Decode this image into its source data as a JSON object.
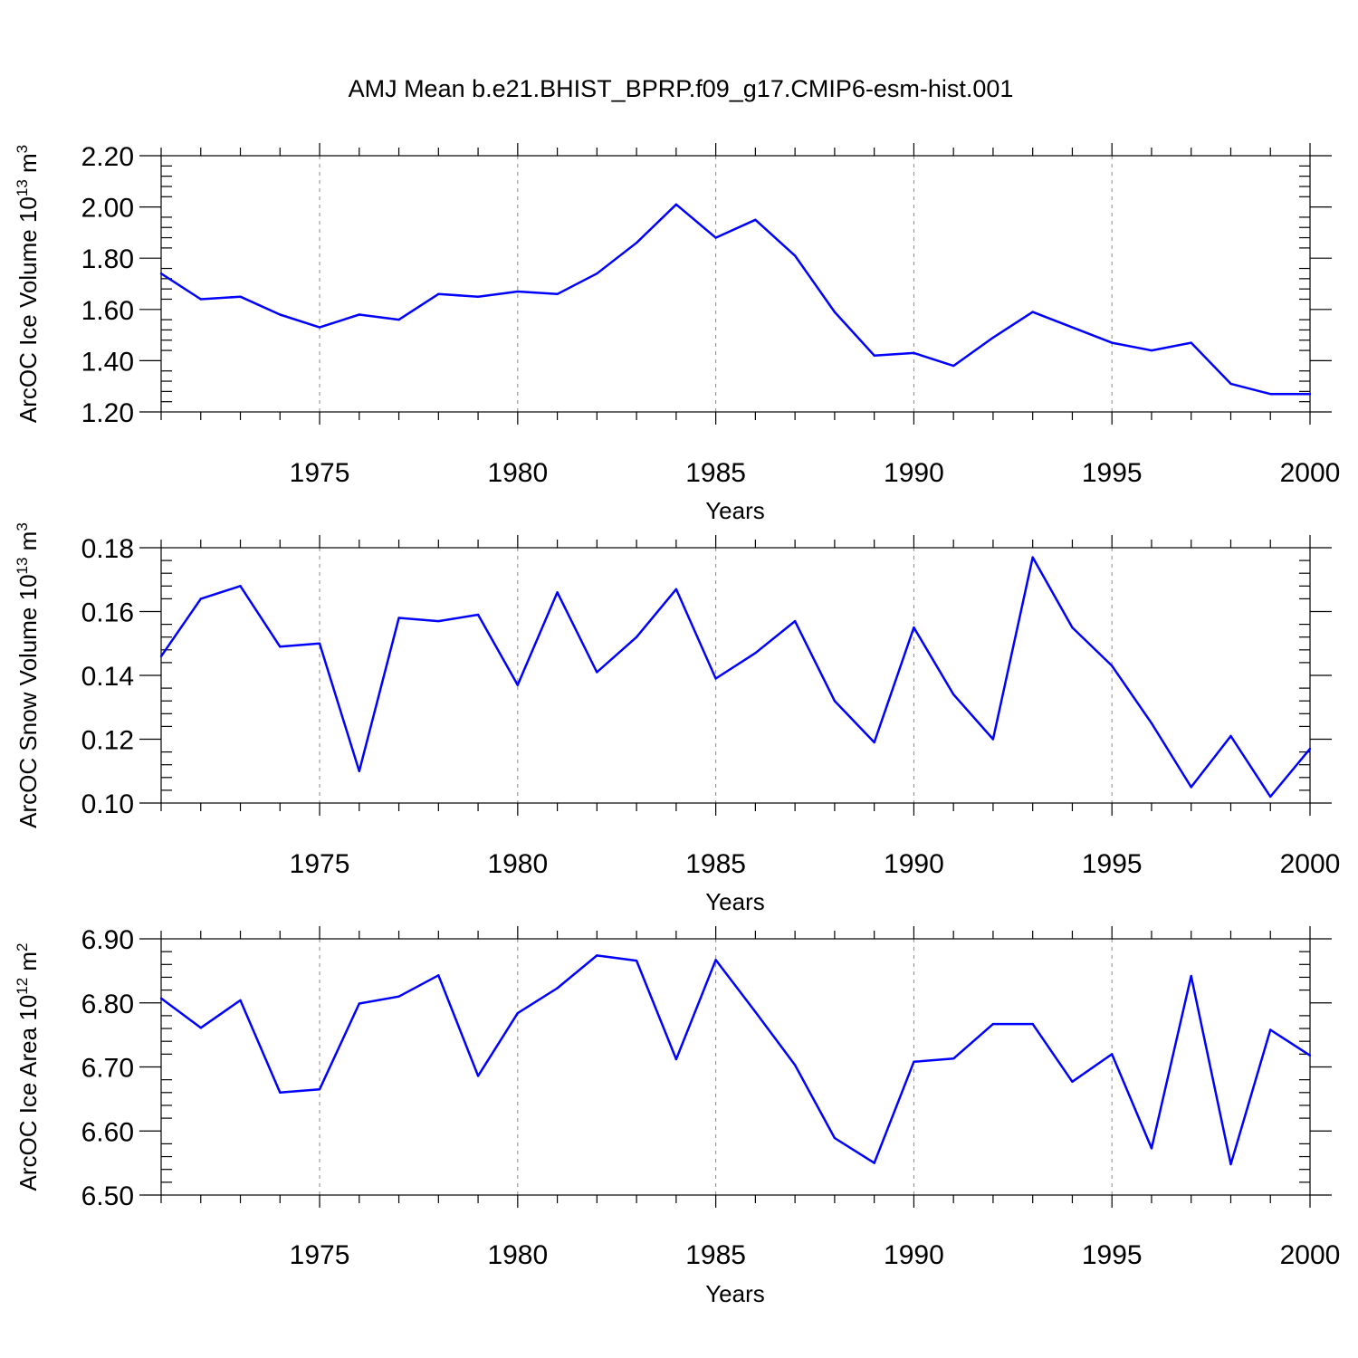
{
  "title": "AMJ Mean b.e21.BHIST_BPRP.f09_g17.CMIP6-esm-hist.001",
  "chart_data": [
    {
      "type": "line",
      "title": "AMJ Mean b.e21.BHIST_BPRP.f09_g17.CMIP6-esm-hist.001",
      "xlabel": "Years",
      "ylabel": "ArcOC Ice Volume 10",
      "ylabel_exp": "13",
      "ylabel_unit": " m",
      "ylabel_unit_exp": "3",
      "xlim": [
        1971,
        2000
      ],
      "ylim": [
        1.2,
        2.2
      ],
      "yticks": [
        "1.20",
        "1.40",
        "1.60",
        "1.80",
        "2.00",
        "2.20"
      ],
      "xticks": [
        "1975",
        "1980",
        "1985",
        "1990",
        "1995",
        "2000"
      ],
      "grid": "vertical dashed at labeled years",
      "color": "#0000ff",
      "x": [
        1971,
        1972,
        1973,
        1974,
        1975,
        1976,
        1977,
        1978,
        1979,
        1980,
        1981,
        1982,
        1983,
        1984,
        1985,
        1986,
        1987,
        1988,
        1989,
        1990,
        1991,
        1992,
        1993,
        1994,
        1995,
        1996,
        1997,
        1998,
        1999,
        2000
      ],
      "values": [
        1.74,
        1.64,
        1.65,
        1.58,
        1.53,
        1.58,
        1.56,
        1.66,
        1.65,
        1.67,
        1.66,
        1.74,
        1.86,
        2.01,
        1.88,
        1.95,
        1.81,
        1.59,
        1.42,
        1.43,
        1.38,
        1.49,
        1.59,
        1.53,
        1.47,
        1.44,
        1.47,
        1.31,
        1.27,
        1.27
      ]
    },
    {
      "type": "line",
      "xlabel": "Years",
      "ylabel": "ArcOC Snow Volume 10",
      "ylabel_exp": "13",
      "ylabel_unit": " m",
      "ylabel_unit_exp": "3",
      "xlim": [
        1971,
        2000
      ],
      "ylim": [
        0.1,
        0.18
      ],
      "yticks": [
        "0.10",
        "0.12",
        "0.14",
        "0.16",
        "0.18"
      ],
      "xticks": [
        "1975",
        "1980",
        "1985",
        "1990",
        "1995",
        "2000"
      ],
      "grid": "vertical dashed at labeled years",
      "color": "#0000ff",
      "x": [
        1971,
        1972,
        1973,
        1974,
        1975,
        1976,
        1977,
        1978,
        1979,
        1980,
        1981,
        1982,
        1983,
        1984,
        1985,
        1986,
        1987,
        1988,
        1989,
        1990,
        1991,
        1992,
        1993,
        1994,
        1995,
        1996,
        1997,
        1998,
        1999,
        2000
      ],
      "values": [
        0.146,
        0.164,
        0.168,
        0.149,
        0.15,
        0.11,
        0.158,
        0.157,
        0.159,
        0.137,
        0.166,
        0.141,
        0.152,
        0.167,
        0.139,
        0.147,
        0.157,
        0.132,
        0.119,
        0.155,
        0.134,
        0.12,
        0.177,
        0.155,
        0.143,
        0.125,
        0.105,
        0.121,
        0.102,
        0.117
      ]
    },
    {
      "type": "line",
      "xlabel": "Years",
      "ylabel": "ArcOC Ice Area 10",
      "ylabel_exp": "12",
      "ylabel_unit": " m",
      "ylabel_unit_exp": "2",
      "xlim": [
        1971,
        2000
      ],
      "ylim": [
        6.5,
        6.9
      ],
      "yticks": [
        "6.50",
        "6.60",
        "6.70",
        "6.80",
        "6.90"
      ],
      "xticks": [
        "1975",
        "1980",
        "1985",
        "1990",
        "1995",
        "2000"
      ],
      "grid": "vertical dashed at labeled years",
      "color": "#0000ff",
      "x": [
        1971,
        1972,
        1973,
        1974,
        1975,
        1976,
        1977,
        1978,
        1979,
        1980,
        1981,
        1982,
        1983,
        1984,
        1985,
        1986,
        1987,
        1988,
        1989,
        1990,
        1991,
        1992,
        1993,
        1994,
        1995,
        1996,
        1997,
        1998,
        1999,
        2000
      ],
      "values": [
        6.807,
        6.761,
        6.804,
        6.66,
        6.665,
        6.799,
        6.81,
        6.843,
        6.686,
        6.784,
        6.823,
        6.874,
        6.866,
        6.712,
        6.867,
        6.786,
        6.703,
        6.589,
        6.55,
        6.708,
        6.713,
        6.767,
        6.767,
        6.677,
        6.72,
        6.573,
        6.842,
        6.548,
        6.758,
        6.718
      ]
    }
  ]
}
